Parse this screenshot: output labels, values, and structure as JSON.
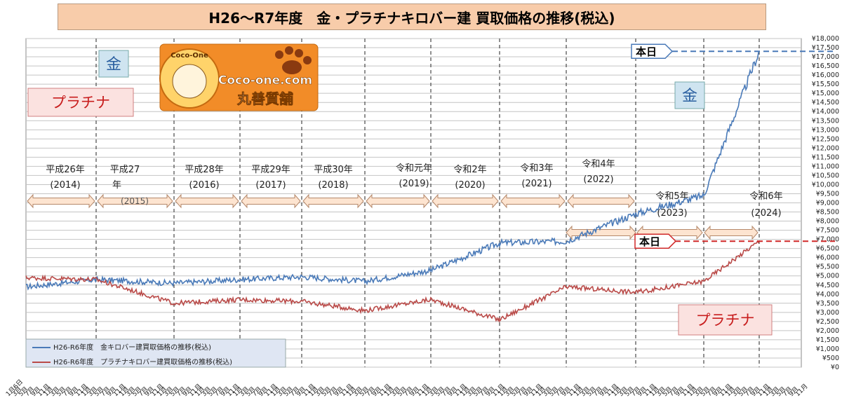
{
  "chart_data": {
    "type": "line",
    "title": "H26～R7年度　金・プラチナキロバー建 買取価格の推移(税込)",
    "ylim": [
      0,
      18000
    ],
    "y_ticks": [
      "¥0",
      "¥500",
      "¥1,000",
      "¥1,500",
      "¥2,000",
      "¥2,500",
      "¥3,000",
      "¥3,500",
      "¥4,000",
      "¥4,500",
      "¥5,000",
      "¥5,500",
      "¥6,000",
      "¥6,500",
      "¥7,000",
      "¥7,500",
      "¥8,000",
      "¥8,500",
      "¥9,000",
      "¥9,500",
      "¥10,000",
      "¥10,500",
      "¥11,000",
      "¥11,500",
      "¥12,000",
      "¥12,500",
      "¥13,000",
      "¥13,500",
      "¥14,000",
      "¥14,500",
      "¥15,000",
      "¥15,500",
      "¥16,000",
      "¥16,500",
      "¥17,000",
      "¥17,500",
      "¥18,000"
    ],
    "x_tick_label_sample": [
      "1月6日",
      "3月",
      "5月",
      "7月",
      "9月",
      "11月",
      "1月"
    ],
    "grid": true,
    "legend_position": "bottom-left",
    "x": [
      "2014",
      "2015",
      "2016",
      "2017",
      "2018",
      "2019",
      "2020",
      "2021",
      "2022",
      "2023",
      "2024",
      "2025"
    ],
    "series": [
      {
        "name": "H26-R6年度　金キロバー建買取価格の推移(税込)",
        "color": "#4a7ab8",
        "values": [
          4400,
          4800,
          4600,
          4800,
          4950,
          4700,
          5300,
          6800,
          6900,
          8400,
          9400,
          17300
        ]
      },
      {
        "name": "H26-R6年度　プラチナキロバー建買取価格の推移(税込)",
        "color": "#b94a48",
        "values": [
          4900,
          4800,
          3500,
          3700,
          3600,
          3100,
          3700,
          2600,
          4400,
          4100,
          4700,
          6900
        ]
      }
    ],
    "era_labels": [
      {
        "line1": "平成26年",
        "line2": "(2014)"
      },
      {
        "line1": "平成27",
        "line2": "年"
      },
      {
        "line1": "平成28年",
        "line2": "(2016)"
      },
      {
        "line1": "平成29年",
        "line2": "(2017)"
      },
      {
        "line1": "平成30年",
        "line2": "(2018)"
      },
      {
        "line1": "令和元年",
        "line2": "(2019)"
      },
      {
        "line1": "令和2年",
        "line2": "(2020)"
      },
      {
        "line1": "令和3年",
        "line2": "(2021)"
      },
      {
        "line1": "令和4年",
        "line2": "(2022)"
      },
      {
        "line1": "令和5年",
        "line2": "(2023)"
      },
      {
        "line1": "令和6年",
        "line2": "(2024)"
      }
    ],
    "annotations": {
      "gold_label": "金",
      "platinum_label": "プラチナ",
      "today_label": "本日",
      "label_2015": "(2015)"
    },
    "logo": {
      "top_text": "Coco-One",
      "site": "Coco-one.com",
      "shop": "丸善質舗"
    },
    "colors": {
      "gold": "#4a7ab8",
      "platinum": "#b94a48",
      "title_bg": "#f8ccaa",
      "arrow_fill": "#fde4d0"
    }
  }
}
